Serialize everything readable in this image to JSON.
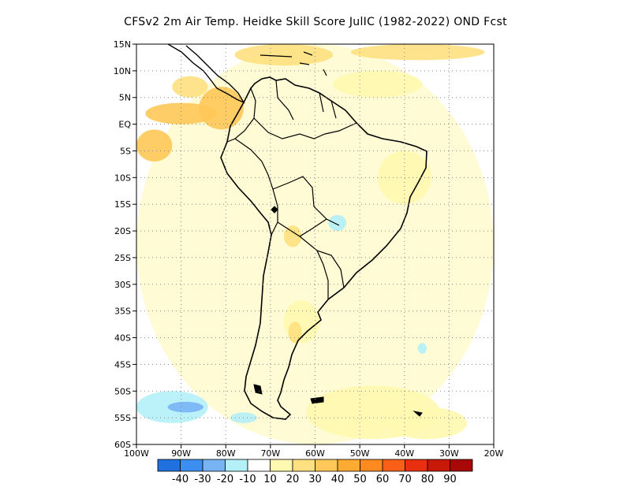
{
  "title": "CFSv2  2m Air Temp. Heidke Skill Score JulIC (1982-2022) OND Fcst",
  "map": {
    "lon_range": [
      -100,
      -20
    ],
    "lat_range": [
      -60,
      15
    ],
    "lat_ticks": [
      {
        "v": 15,
        "label": "15N"
      },
      {
        "v": 10,
        "label": "10N"
      },
      {
        "v": 5,
        "label": "5N"
      },
      {
        "v": 0,
        "label": "EQ"
      },
      {
        "v": -5,
        "label": "5S"
      },
      {
        "v": -10,
        "label": "10S"
      },
      {
        "v": -15,
        "label": "15S"
      },
      {
        "v": -20,
        "label": "20S"
      },
      {
        "v": -25,
        "label": "25S"
      },
      {
        "v": -30,
        "label": "30S"
      },
      {
        "v": -35,
        "label": "35S"
      },
      {
        "v": -40,
        "label": "40S"
      },
      {
        "v": -45,
        "label": "45S"
      },
      {
        "v": -50,
        "label": "50S"
      },
      {
        "v": -55,
        "label": "55S"
      },
      {
        "v": -60,
        "label": "60S"
      }
    ],
    "lon_ticks": [
      {
        "v": -100,
        "label": "100W"
      },
      {
        "v": -90,
        "label": "90W"
      },
      {
        "v": -80,
        "label": "80W"
      },
      {
        "v": -70,
        "label": "70W"
      },
      {
        "v": -60,
        "label": "60W"
      },
      {
        "v": -50,
        "label": "50W"
      },
      {
        "v": -40,
        "label": "40W"
      },
      {
        "v": -30,
        "label": "30W"
      },
      {
        "v": -20,
        "label": "20W"
      }
    ],
    "grid": "dotted"
  },
  "colorbar": {
    "colors": [
      "#2070e0",
      "#3c8ff0",
      "#78b4f4",
      "#b4f0f8",
      "#ffffff",
      "#fff8b0",
      "#ffe080",
      "#ffc858",
      "#ffaa30",
      "#ff8a20",
      "#f86018",
      "#e83010",
      "#c81808",
      "#a80808"
    ],
    "labels": [
      "-40",
      "-30",
      "-20",
      "-10",
      "10",
      "20",
      "30",
      "40",
      "50",
      "60",
      "70",
      "80",
      "90"
    ]
  },
  "field_blobs": [
    {
      "lon": -100,
      "lat": 15,
      "w": 80,
      "h": 75,
      "level": 1
    },
    {
      "lon": -86,
      "lat": 7,
      "w": 10,
      "h": 8,
      "level": 3
    },
    {
      "lon": -92,
      "lat": 9,
      "w": 8,
      "h": 4,
      "level": 2
    },
    {
      "lon": -98,
      "lat": 4,
      "w": 16,
      "h": 4,
      "level": 3
    },
    {
      "lon": -100,
      "lat": -1,
      "w": 8,
      "h": 6,
      "level": 3
    },
    {
      "lon": -78,
      "lat": 15,
      "w": 22,
      "h": 4,
      "level": 2
    },
    {
      "lon": -52,
      "lat": 15,
      "w": 30,
      "h": 3,
      "level": 2
    },
    {
      "lon": -56,
      "lat": 10,
      "w": 20,
      "h": 5,
      "level": 1
    },
    {
      "lon": -46,
      "lat": -5,
      "w": 12,
      "h": 10,
      "level": 1
    },
    {
      "lon": -67,
      "lat": -19,
      "w": 4,
      "h": 4,
      "level": 2
    },
    {
      "lon": -67,
      "lat": -33,
      "w": 8,
      "h": 8,
      "level": 1
    },
    {
      "lon": -66,
      "lat": -37,
      "w": 3,
      "h": 4,
      "level": 2
    },
    {
      "lon": -62,
      "lat": -49,
      "w": 30,
      "h": 10,
      "level": 1
    },
    {
      "lon": -44,
      "lat": -53,
      "w": 18,
      "h": 6,
      "level": 1
    },
    {
      "lon": -100,
      "lat": -50,
      "w": 16,
      "h": 6,
      "level": -1
    },
    {
      "lon": -93,
      "lat": -52,
      "w": 8,
      "h": 2,
      "level": -2
    },
    {
      "lon": -79,
      "lat": -54,
      "w": 6,
      "h": 2,
      "level": -1
    },
    {
      "lon": -57,
      "lat": -17,
      "w": 4,
      "h": 3,
      "level": -1
    },
    {
      "lon": -37,
      "lat": -41,
      "w": 2,
      "h": 2,
      "level": -1
    }
  ]
}
